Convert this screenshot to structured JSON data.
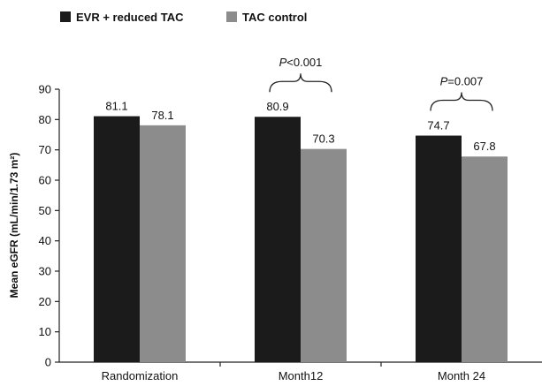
{
  "chart_data": {
    "type": "bar",
    "categories": [
      "Randomization",
      "Month12",
      "Month 24"
    ],
    "series": [
      {
        "name": "EVR + reduced TAC",
        "values": [
          81.1,
          80.9,
          74.7
        ],
        "color": "#1b1b1b"
      },
      {
        "name": "TAC control",
        "values": [
          78.1,
          70.3,
          67.8
        ],
        "color": "#8c8c8c"
      }
    ],
    "data_labels": [
      [
        "81.1",
        "80.9",
        "74.7"
      ],
      [
        "78.1",
        "70.3",
        "67.8"
      ]
    ],
    "ylabel": "Mean eGFR (mL/min/1.73 m²)",
    "ylim": [
      0,
      90
    ],
    "yticks": [
      0,
      10,
      20,
      30,
      40,
      50,
      60,
      70,
      80,
      90
    ],
    "legend_position": "top-left",
    "grid": false,
    "annotations": [
      {
        "category": "Month12",
        "p_symbol": "P",
        "p_value": "<0.001"
      },
      {
        "category": "Month 24",
        "p_symbol": "P",
        "p_value": "=0.007"
      }
    ]
  }
}
